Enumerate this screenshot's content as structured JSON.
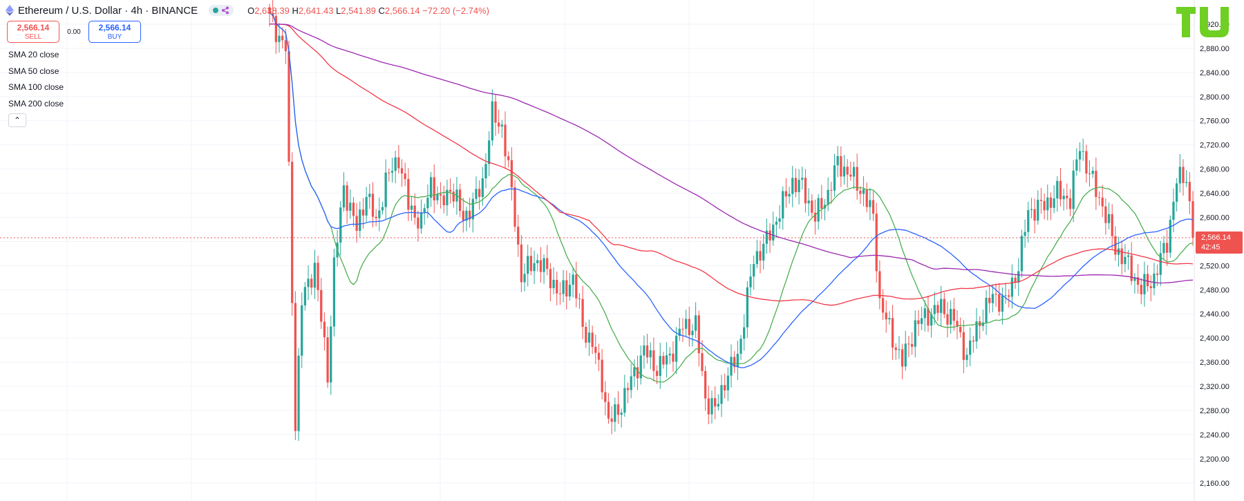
{
  "header": {
    "symbol": "Ethereum / U.S. Dollar · 4h · BINANCE",
    "ohlc": {
      "o_label": "O",
      "o": "2,638.39",
      "h_label": "H",
      "h": "2,641.43",
      "l_label": "L",
      "l": "2,541.89",
      "c_label": "C",
      "c": "2,566.14",
      "change": "−72.20 (−2.74%)"
    }
  },
  "trade": {
    "sell_price": "2,566.14",
    "sell_label": "SELL",
    "spread": "0.00",
    "buy_price": "2,566.14",
    "buy_label": "BUY"
  },
  "indicators": [
    "SMA 20 close",
    "SMA 50 close",
    "SMA 100 close",
    "SMA 200 close"
  ],
  "collapse_icon": "chevron-up-icon",
  "current_price": {
    "value": "2,566.14",
    "countdown": "42:45",
    "color": "#ef5350"
  },
  "colors": {
    "up": "#26a69a",
    "down": "#ef5350",
    "sma20": "#4caf50",
    "sma50": "#2962ff",
    "sma100": "#f23645",
    "sma200": "#9c27b0",
    "logo": "#6fcf22"
  },
  "chart_data": {
    "type": "candlestick",
    "title": "",
    "xlabel": "",
    "ylabel": "",
    "ylim": [
      2130,
      2960
    ],
    "y_ticks": [
      2160,
      2200,
      2240,
      2280,
      2320,
      2360,
      2400,
      2440,
      2480,
      2520,
      2560,
      2600,
      2640,
      2680,
      2720,
      2760,
      2800,
      2840,
      2880,
      2920
    ],
    "y_tick_labels": [
      "2,160.00",
      "2,200.00",
      "2,240.00",
      "2,280.00",
      "2,320.00",
      "2,360.00",
      "2,400.00",
      "2,440.00",
      "2,480.00",
      "2,520.00",
      "2,560.00",
      "2,600.00",
      "2,640.00",
      "2,680.00",
      "2,720.00",
      "2,760.00",
      "2,800.00",
      "2,840.00",
      "2,880.00",
      "2,920.00"
    ],
    "price_keypoints": [
      [
        0,
        2930
      ],
      [
        5,
        2880
      ],
      [
        8,
        2260
      ],
      [
        10,
        2460
      ],
      [
        14,
        2520
      ],
      [
        18,
        2340
      ],
      [
        20,
        2520
      ],
      [
        23,
        2650
      ],
      [
        27,
        2580
      ],
      [
        30,
        2640
      ],
      [
        33,
        2590
      ],
      [
        36,
        2660
      ],
      [
        40,
        2700
      ],
      [
        43,
        2620
      ],
      [
        47,
        2590
      ],
      [
        50,
        2660
      ],
      [
        53,
        2620
      ],
      [
        56,
        2650
      ],
      [
        60,
        2600
      ],
      [
        63,
        2620
      ],
      [
        66,
        2660
      ],
      [
        69,
        2770
      ],
      [
        72,
        2750
      ],
      [
        74,
        2680
      ],
      [
        76,
        2600
      ],
      [
        78,
        2500
      ],
      [
        82,
        2530
      ],
      [
        86,
        2510
      ],
      [
        90,
        2470
      ],
      [
        94,
        2500
      ],
      [
        97,
        2420
      ],
      [
        100,
        2390
      ],
      [
        103,
        2330
      ],
      [
        105,
        2260
      ],
      [
        108,
        2280
      ],
      [
        112,
        2330
      ],
      [
        116,
        2380
      ],
      [
        120,
        2350
      ],
      [
        124,
        2370
      ],
      [
        128,
        2420
      ],
      [
        132,
        2420
      ],
      [
        135,
        2300
      ],
      [
        138,
        2280
      ],
      [
        141,
        2330
      ],
      [
        145,
        2370
      ],
      [
        150,
        2530
      ],
      [
        154,
        2560
      ],
      [
        158,
        2610
      ],
      [
        162,
        2660
      ],
      [
        165,
        2650
      ],
      [
        169,
        2600
      ],
      [
        173,
        2640
      ],
      [
        176,
        2690
      ],
      [
        180,
        2670
      ],
      [
        184,
        2640
      ],
      [
        187,
        2600
      ],
      [
        189,
        2460
      ],
      [
        193,
        2400
      ],
      [
        196,
        2360
      ],
      [
        200,
        2420
      ],
      [
        204,
        2440
      ],
      [
        208,
        2450
      ],
      [
        212,
        2430
      ],
      [
        216,
        2370
      ],
      [
        220,
        2430
      ],
      [
        224,
        2470
      ],
      [
        228,
        2460
      ],
      [
        232,
        2520
      ],
      [
        235,
        2610
      ],
      [
        240,
        2620
      ],
      [
        244,
        2640
      ],
      [
        248,
        2630
      ],
      [
        251,
        2720
      ],
      [
        254,
        2670
      ],
      [
        258,
        2620
      ],
      [
        262,
        2550
      ],
      [
        266,
        2520
      ],
      [
        270,
        2480
      ],
      [
        274,
        2500
      ],
      [
        278,
        2560
      ],
      [
        281,
        2660
      ],
      [
        284,
        2670
      ],
      [
        286,
        2566.14
      ]
    ]
  }
}
